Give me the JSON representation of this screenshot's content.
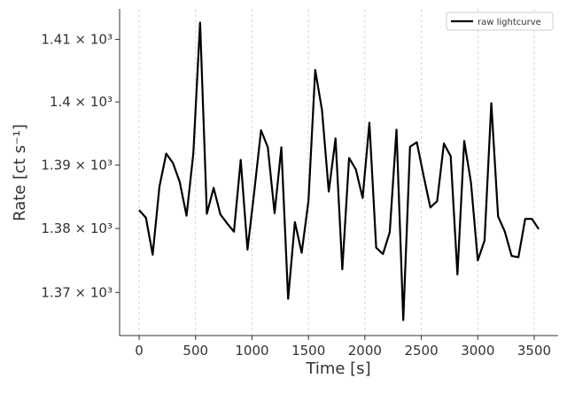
{
  "chart_data": {
    "type": "line",
    "xlabel": "Time [s]",
    "ylabel": "Rate [ct s⁻¹]",
    "x": [
      0,
      60,
      120,
      180,
      240,
      300,
      360,
      420,
      480,
      540,
      600,
      660,
      720,
      780,
      840,
      900,
      960,
      1020,
      1080,
      1140,
      1200,
      1260,
      1320,
      1380,
      1440,
      1500,
      1560,
      1620,
      1680,
      1740,
      1800,
      1860,
      1920,
      1980,
      2040,
      2100,
      2160,
      2220,
      2280,
      2340,
      2400,
      2460,
      2520,
      2580,
      2640,
      2700,
      2760,
      2820,
      2880,
      2940,
      3000,
      3060,
      3120,
      3180,
      3240,
      3300,
      3360,
      3420,
      3480,
      3540
    ],
    "series": [
      {
        "name": "raw lightcurve",
        "color": "#000000",
        "values": [
          1382.9,
          1381.7,
          1375.9,
          1386.6,
          1391.8,
          1390.3,
          1387.3,
          1382.0,
          1391.8,
          1412.7,
          1382.3,
          1386.4,
          1382.2,
          1380.8,
          1379.5,
          1390.8,
          1376.7,
          1385.8,
          1395.5,
          1392.8,
          1382.4,
          1392.8,
          1369.0,
          1381.0,
          1376.2,
          1384.3,
          1405.1,
          1398.7,
          1385.8,
          1394.2,
          1373.6,
          1391.1,
          1389.3,
          1384.8,
          1396.7,
          1377.0,
          1376.0,
          1379.4,
          1395.6,
          1365.7,
          1392.9,
          1393.6,
          1388.3,
          1383.3,
          1384.3,
          1393.4,
          1391.4,
          1372.8,
          1393.8,
          1387.2,
          1375.0,
          1378.1,
          1399.8,
          1381.9,
          1379.5,
          1375.7,
          1375.5,
          1381.5,
          1381.5,
          1379.9
        ]
      }
    ],
    "xlim": [
      -173,
      3712
    ],
    "xticks": [
      0,
      500,
      1000,
      1500,
      2000,
      2500,
      3000,
      3500
    ],
    "ylim": [
      1363.3,
      1414.9
    ],
    "yticks": [
      {
        "value": 1370,
        "label": "1.37 × 10³"
      },
      {
        "value": 1380,
        "label": "1.38 × 10³"
      },
      {
        "value": 1390,
        "label": "1.39 × 10³"
      },
      {
        "value": 1400,
        "label": "1.4 × 10³"
      },
      {
        "value": 1410,
        "label": "1.41 × 10³"
      }
    ],
    "ylog": true,
    "xgrid": true,
    "legend": "upper right"
  }
}
